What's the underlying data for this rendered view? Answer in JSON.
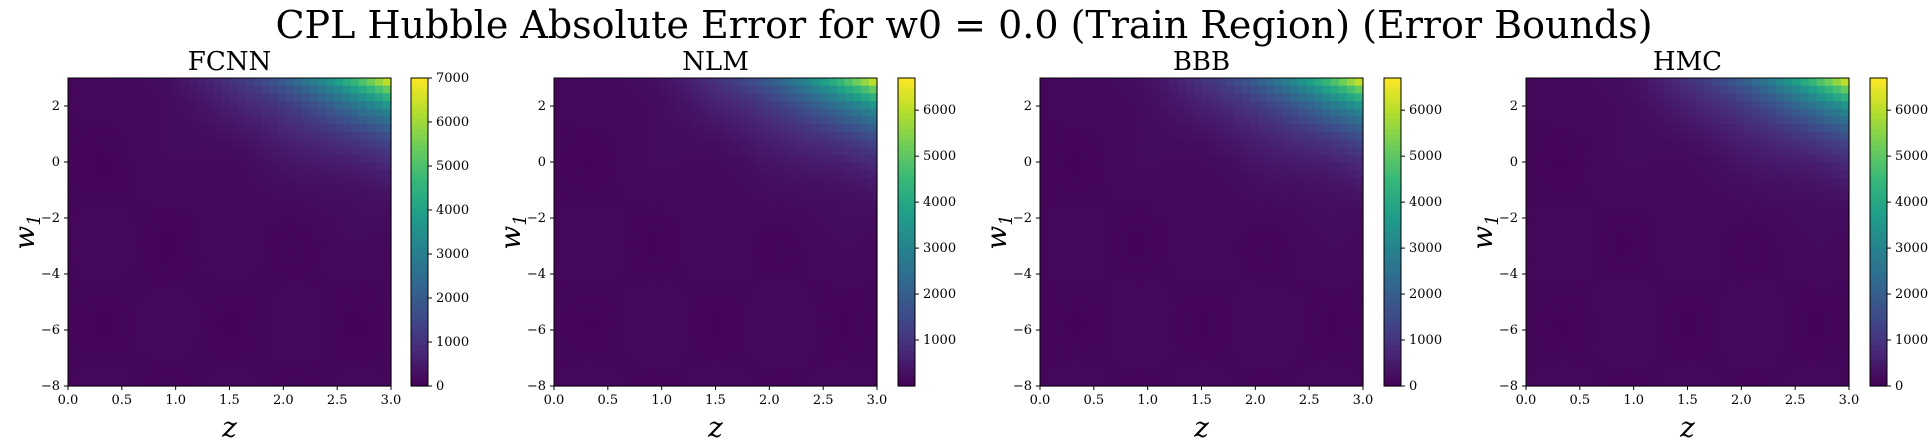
{
  "figure": {
    "title": "CPL Hubble Absolute Error for w0 = 0.0 (Train Region) (Error Bounds)"
  },
  "chart_data": [
    {
      "type": "heatmap",
      "title": "FCNN",
      "xlabel": "z",
      "ylabel": "w1",
      "xlim": [
        0.0,
        3.0
      ],
      "ylim": [
        -8,
        3
      ],
      "xticks": [
        "0.0",
        "0.5",
        "1.0",
        "1.5",
        "2.0",
        "2.5",
        "3.0"
      ],
      "yticks": [
        "2",
        "0",
        "−2",
        "−4",
        "−6",
        "−8"
      ],
      "colorbar": {
        "min": 0,
        "max": 7000,
        "ticks": [
          "0",
          "1000",
          "2000",
          "3000",
          "4000",
          "5000",
          "6000",
          "7000"
        ]
      },
      "colormap": "viridis",
      "peak": {
        "x": 3.0,
        "y": 3.0,
        "value": 7000
      }
    },
    {
      "type": "heatmap",
      "title": "NLM",
      "xlabel": "z",
      "ylabel": "w1",
      "xlim": [
        0.0,
        3.0
      ],
      "ylim": [
        -8,
        3
      ],
      "xticks": [
        "0.0",
        "0.5",
        "1.0",
        "1.5",
        "2.0",
        "2.5",
        "3.0"
      ],
      "yticks": [
        "2",
        "0",
        "−2",
        "−4",
        "−6",
        "−8"
      ],
      "colorbar": {
        "min": 0,
        "max": 6700,
        "ticks": [
          "1000",
          "2000",
          "3000",
          "4000",
          "5000",
          "6000"
        ]
      },
      "colormap": "viridis",
      "peak": {
        "x": 3.0,
        "y": 3.0,
        "value": 6700
      }
    },
    {
      "type": "heatmap",
      "title": "BBB",
      "xlabel": "z",
      "ylabel": "w1",
      "xlim": [
        0.0,
        3.0
      ],
      "ylim": [
        -8,
        3
      ],
      "xticks": [
        "0.0",
        "0.5",
        "1.0",
        "1.5",
        "2.0",
        "2.5",
        "3.0"
      ],
      "yticks": [
        "2",
        "0",
        "−2",
        "−4",
        "−6",
        "−8"
      ],
      "colorbar": {
        "min": 0,
        "max": 6700,
        "ticks": [
          "0",
          "1000",
          "2000",
          "3000",
          "4000",
          "5000",
          "6000"
        ]
      },
      "colormap": "viridis",
      "peak": {
        "x": 3.0,
        "y": 3.0,
        "value": 6700
      }
    },
    {
      "type": "heatmap",
      "title": "HMC",
      "xlabel": "z",
      "ylabel": "w1",
      "xlim": [
        0.0,
        3.0
      ],
      "ylim": [
        -8,
        3
      ],
      "xticks": [
        "0.0",
        "0.5",
        "1.0",
        "1.5",
        "2.0",
        "2.5",
        "3.0"
      ],
      "yticks": [
        "2",
        "0",
        "−2",
        "−4",
        "−6",
        "−8"
      ],
      "colorbar": {
        "min": 0,
        "max": 6700,
        "ticks": [
          "0",
          "1000",
          "2000",
          "3000",
          "4000",
          "5000",
          "6000"
        ]
      },
      "colormap": "viridis",
      "peak": {
        "x": 3.0,
        "y": 3.0,
        "value": 6700
      }
    }
  ]
}
